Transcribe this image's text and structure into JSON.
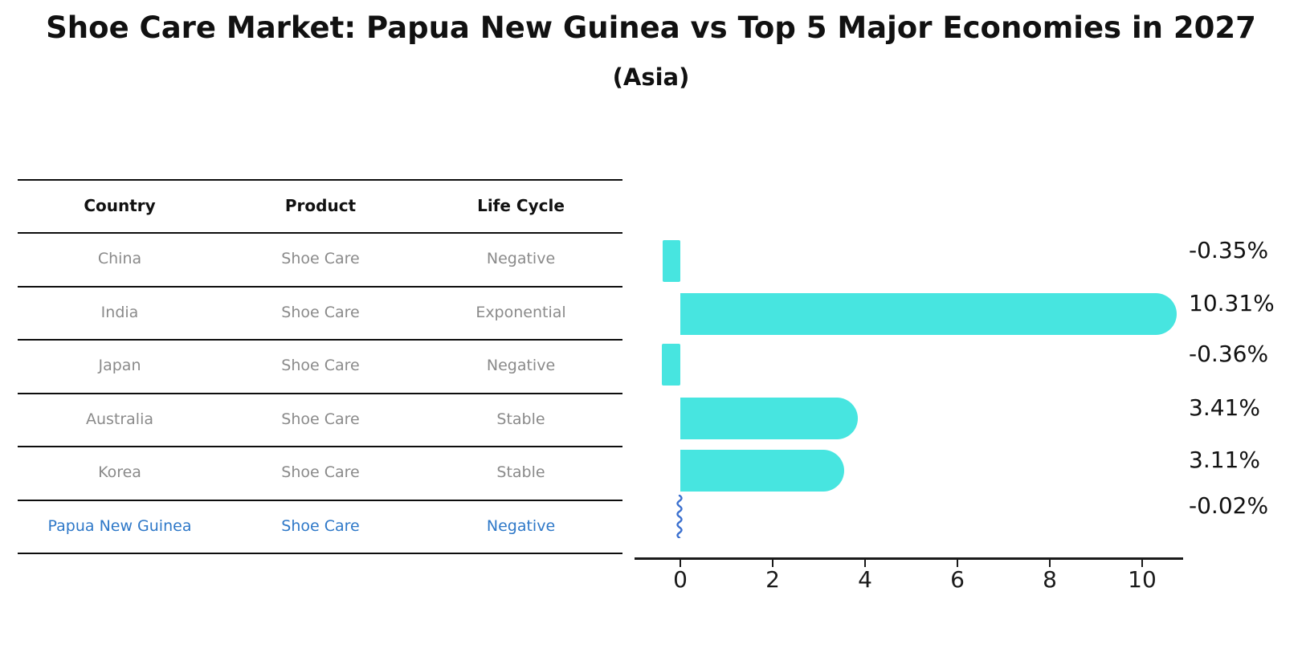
{
  "chart_data": {
    "type": "bar",
    "orientation": "horizontal",
    "title": "Shoe Care Market: Papua New Guinea vs Top 5 Major Economies in 2027",
    "subtitle": "(Asia)",
    "categories": [
      "China",
      "India",
      "Japan",
      "Australia",
      "Korea",
      "Papua New Guinea"
    ],
    "values": [
      -0.35,
      10.31,
      -0.36,
      3.41,
      3.11,
      -0.02
    ],
    "value_labels": [
      "-0.35%",
      "10.31%",
      "-0.36%",
      "3.41%",
      "3.11%",
      "-0.02%"
    ],
    "highlight_index": 5,
    "x_ticks": [
      "0",
      "2",
      "4",
      "6",
      "8",
      "10"
    ],
    "x_tick_values": [
      0,
      2,
      4,
      6,
      8,
      10
    ],
    "xlim": [
      -1.0,
      10.9
    ],
    "xlabel": "",
    "ylabel": "",
    "grid": false,
    "legend": "none",
    "bar_color": "#47e5e0",
    "highlight_marker_color": "#3b70cf",
    "axis_color": "#1a1a1a"
  },
  "table": {
    "headers": [
      "Country",
      "Product",
      "Life Cycle"
    ],
    "rows": [
      {
        "country": "China",
        "product": "Shoe Care",
        "life_cycle": "Negative",
        "highlight": false
      },
      {
        "country": "India",
        "product": "Shoe Care",
        "life_cycle": "Exponential",
        "highlight": false
      },
      {
        "country": "Japan",
        "product": "Shoe Care",
        "life_cycle": "Negative",
        "highlight": false
      },
      {
        "country": "Australia",
        "product": "Shoe Care",
        "life_cycle": "Stable",
        "highlight": false
      },
      {
        "country": "Korea",
        "product": "Shoe Care",
        "life_cycle": "Stable",
        "highlight": false
      },
      {
        "country": "Papua New Guinea",
        "product": "Shoe Care",
        "life_cycle": "Negative",
        "highlight": true
      }
    ]
  },
  "colors": {
    "title_text": "#111111",
    "table_text": "#8a8a8a",
    "highlight_text": "#2e78c8",
    "bar": "#47e5e0",
    "squiggle": "#3b70cf"
  }
}
